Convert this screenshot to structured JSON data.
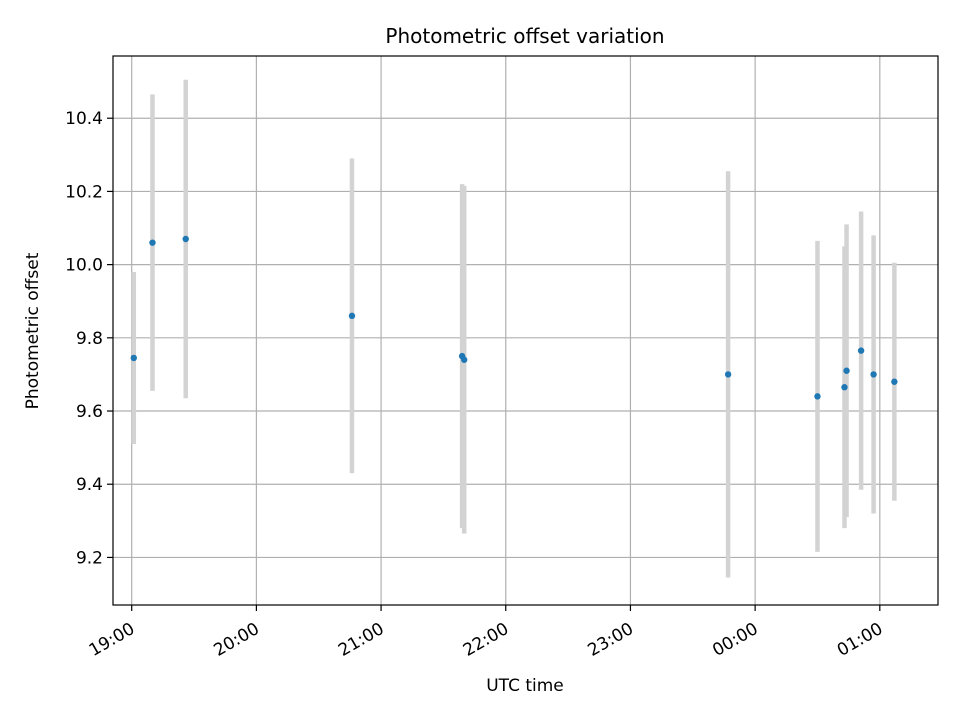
{
  "chart_data": {
    "type": "scatter",
    "title": "Photometric offset variation",
    "xlabel": "UTC time",
    "ylabel": "Photometric offset",
    "grid": true,
    "x_ticks": [
      "19:00",
      "20:00",
      "21:00",
      "22:00",
      "23:00",
      "00:00",
      "01:00"
    ],
    "y_ticks": [
      "9.2",
      "9.4",
      "9.6",
      "9.8",
      "10.0",
      "10.2",
      "10.4"
    ],
    "xlim": [
      "18:51",
      "01:28"
    ],
    "ylim": [
      9.07,
      10.57
    ],
    "colors": {
      "point": "#1f77b4",
      "errorbar": "#d3d3d3",
      "grid": "#b0b0b0"
    },
    "series": [
      {
        "x": [
          "19:01",
          "19:10",
          "19:26",
          "20:46",
          "21:39",
          "21:40",
          "23:47",
          "00:30",
          "00:43",
          "00:44",
          "00:51",
          "00:57",
          "01:07"
        ],
        "y": [
          9.745,
          10.06,
          10.07,
          9.86,
          9.75,
          9.74,
          9.7,
          9.64,
          9.665,
          9.71,
          9.765,
          9.7,
          9.68
        ],
        "yerr": [
          0.235,
          0.405,
          0.435,
          0.43,
          0.47,
          0.475,
          0.555,
          0.425,
          0.385,
          0.4,
          0.38,
          0.38,
          0.325
        ]
      }
    ]
  }
}
